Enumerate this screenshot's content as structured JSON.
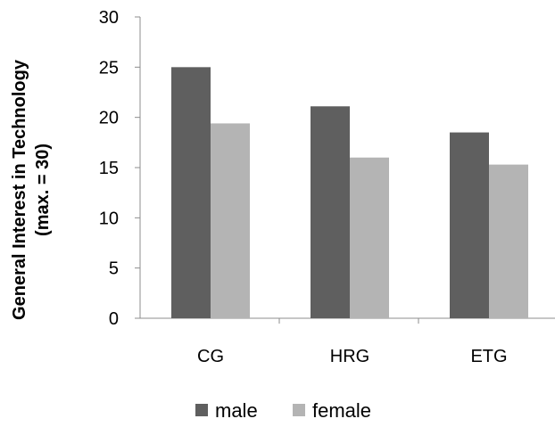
{
  "chart_data": {
    "type": "bar",
    "title": "",
    "xlabel": "",
    "ylabel": "General Interest in Technology",
    "ylabel_sub": "(max. = 30)",
    "categories": [
      "CG",
      "HRG",
      "ETG"
    ],
    "series": [
      {
        "name": "male",
        "values": [
          25.0,
          21.1,
          18.5
        ],
        "color": "#5f5f5f"
      },
      {
        "name": "female",
        "values": [
          19.4,
          16.0,
          15.3
        ],
        "color": "#b4b4b4"
      }
    ],
    "ylim": [
      0,
      30
    ],
    "yticks": [
      0,
      5,
      10,
      15,
      20,
      25,
      30
    ],
    "grid": false,
    "legend_position": "bottom"
  }
}
